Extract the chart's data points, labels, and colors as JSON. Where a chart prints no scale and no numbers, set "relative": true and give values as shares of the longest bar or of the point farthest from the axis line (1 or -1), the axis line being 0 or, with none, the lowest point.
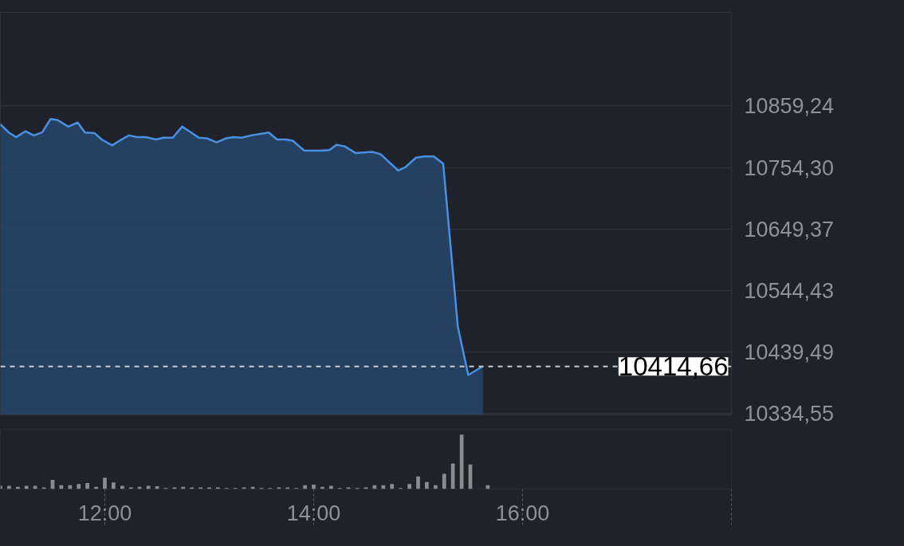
{
  "chart_data": [
    {
      "type": "area",
      "color": "#4a90e2",
      "x": [
        11.0,
        11.08,
        11.15,
        11.24,
        11.32,
        11.4,
        11.48,
        11.55,
        11.65,
        11.74,
        11.81,
        11.9,
        11.97,
        12.07,
        12.16,
        12.23,
        12.31,
        12.39,
        12.49,
        12.56,
        12.65,
        12.74,
        12.81,
        12.9,
        12.98,
        13.07,
        13.16,
        13.23,
        13.31,
        13.4,
        13.57,
        13.65,
        13.73,
        13.8,
        13.91,
        14.07,
        14.15,
        14.22,
        14.3,
        14.4,
        14.56,
        14.64,
        14.81,
        14.88,
        14.98,
        15.06,
        15.15,
        15.24,
        15.38,
        15.48,
        15.62
      ],
      "values": [
        10828,
        10814,
        10806,
        10816,
        10809,
        10814,
        10837,
        10835,
        10824,
        10831,
        10814,
        10813,
        10802,
        10792,
        10802,
        10809,
        10806,
        10806,
        10802,
        10805,
        10805,
        10824,
        10816,
        10805,
        10804,
        10797,
        10804,
        10806,
        10805,
        10809,
        10814,
        10802,
        10802,
        10800,
        10783,
        10783,
        10784,
        10793,
        10790,
        10779,
        10781,
        10777,
        10749,
        10755,
        10771,
        10773,
        10773,
        10761,
        10483,
        10400,
        10415
      ],
      "xlim": [
        11,
        18
      ],
      "ylim": [
        10332,
        11019
      ],
      "yticks": [
        {
          "value": 10334.55,
          "label": "10334,55"
        },
        {
          "value": 10439.49,
          "label": "10439,49"
        },
        {
          "value": 10544.43,
          "label": "10544,43"
        },
        {
          "value": 10649.37,
          "label": "10649,37"
        },
        {
          "value": 10754.3,
          "label": "10754,30"
        },
        {
          "value": 10859.24,
          "label": "10859,24"
        }
      ],
      "tick_labels": "y",
      "grid": "y",
      "ref_lines": [
        {
          "axis": "y",
          "value": 10414.66,
          "label": "10414,66",
          "color": "#c8c9cc",
          "line_style": "dashed"
        }
      ]
    },
    {
      "type": "bar",
      "color": "#8a8c92",
      "relative": true,
      "x": [
        11.0,
        11.083,
        11.167,
        11.25,
        11.333,
        11.417,
        11.5,
        11.583,
        11.667,
        11.75,
        11.833,
        11.917,
        12.0,
        12.083,
        12.167,
        12.25,
        12.333,
        12.417,
        12.5,
        12.583,
        12.667,
        12.75,
        12.833,
        12.917,
        13.0,
        13.083,
        13.167,
        13.25,
        13.333,
        13.417,
        13.5,
        13.583,
        13.667,
        13.75,
        13.833,
        13.917,
        14.0,
        14.083,
        14.167,
        14.25,
        14.333,
        14.417,
        14.5,
        14.583,
        14.667,
        14.75,
        14.833,
        14.917,
        15.0,
        15.083,
        15.167,
        15.25,
        15.333,
        15.417,
        15.5,
        15.583,
        15.667
      ],
      "values": [
        0.06,
        0.06,
        0.04,
        0.06,
        0.06,
        0.03,
        0.17,
        0.07,
        0.07,
        0.09,
        0.11,
        0.04,
        0.21,
        0.12,
        0.06,
        0.03,
        0.04,
        0.06,
        0.05,
        0.02,
        0.03,
        0.04,
        0.03,
        0.03,
        0.03,
        0.03,
        0.02,
        0.02,
        0.03,
        0.04,
        0.02,
        0.02,
        0.03,
        0.03,
        0.02,
        0.07,
        0.08,
        0.04,
        0.06,
        0.02,
        0.03,
        0.02,
        0.03,
        0.07,
        0.07,
        0.09,
        0.02,
        0.09,
        0.23,
        0.13,
        0.07,
        0.28,
        0.47,
        1,
        0.45,
        null,
        0.07
      ],
      "xlim": [
        11,
        18
      ],
      "xticks": [
        {
          "value": 12,
          "label": "12:00"
        },
        {
          "value": 14,
          "label": "14:00"
        },
        {
          "value": 16,
          "label": "16:00"
        },
        {
          "value": 18,
          "label": null
        }
      ],
      "tick_labels": "x",
      "grid": false
    }
  ]
}
